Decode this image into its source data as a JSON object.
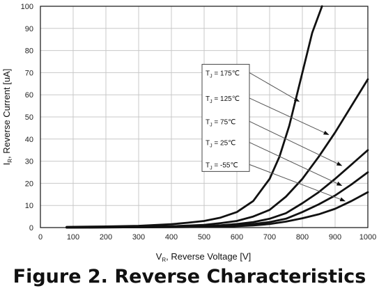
{
  "caption": "Figure 2. Reverse Characteristics",
  "chart_data": {
    "type": "line",
    "title": "",
    "xlabel_prefix": "V",
    "xlabel_sub": "R",
    "xlabel_rest": ", Reverse Voltage [V]",
    "ylabel_prefix": "I",
    "ylabel_sub": "R",
    "ylabel_rest": ", Reverse Current [uA]",
    "xlim": [
      0,
      1000
    ],
    "ylim": [
      0,
      100
    ],
    "xticks": [
      "0",
      "100",
      "200",
      "300",
      "400",
      "500",
      "600",
      "700",
      "800",
      "900",
      "1000"
    ],
    "yticks": [
      "0",
      "10",
      "20",
      "30",
      "40",
      "50",
      "60",
      "70",
      "80",
      "90",
      "100"
    ],
    "grid": true,
    "legend_placement": "center-left callouts with arrows",
    "series": [
      {
        "name": "T = 175℃",
        "label_sub": "J",
        "label_prefix": "T",
        "label_rest": " = 175℃",
        "x": [
          80,
          200,
          300,
          400,
          450,
          500,
          550,
          600,
          650,
          700,
          730,
          760,
          800,
          830,
          860
        ],
        "y": [
          0.3,
          0.5,
          0.8,
          1.5,
          2.2,
          3,
          4.5,
          7,
          12,
          22,
          32,
          46,
          70,
          88,
          100
        ],
        "label_y": 70,
        "arrow_to": [
          790,
          57
        ]
      },
      {
        "name": "T = 125℃",
        "label_sub": "J",
        "label_prefix": "T",
        "label_rest": " = 125℃",
        "x": [
          80,
          300,
          400,
          500,
          550,
          600,
          650,
          700,
          750,
          800,
          850,
          900,
          950,
          1000
        ],
        "y": [
          0.1,
          0.3,
          0.6,
          1.2,
          2,
          3,
          5,
          8,
          14,
          22,
          32,
          43,
          55,
          67
        ],
        "label_y": 58.5,
        "arrow_to": [
          880,
          42
        ]
      },
      {
        "name": "T = 75℃",
        "label_sub": "J",
        "label_prefix": "T",
        "label_rest": " = 75℃",
        "x": [
          80,
          400,
          500,
          550,
          600,
          650,
          700,
          750,
          800,
          850,
          900,
          950,
          1000
        ],
        "y": [
          0,
          0.3,
          0.6,
          1,
          1.6,
          2.5,
          4,
          6.5,
          11,
          16,
          22,
          28.5,
          35
        ],
        "label_y": 48,
        "arrow_to": [
          920,
          28
        ]
      },
      {
        "name": "T = 25℃",
        "label_sub": "J",
        "label_prefix": "T",
        "label_rest": " = 25℃",
        "x": [
          80,
          500,
          600,
          650,
          700,
          750,
          800,
          850,
          900,
          950,
          1000
        ],
        "y": [
          0,
          0.3,
          1,
          1.6,
          2.5,
          4,
          7,
          10.5,
          14.5,
          19.5,
          25
        ],
        "label_y": 38.5,
        "arrow_to": [
          920,
          19
        ]
      },
      {
        "name": "T = -55℃",
        "label_sub": "J",
        "label_prefix": "T",
        "label_rest": " = -55℃",
        "x": [
          80,
          550,
          650,
          700,
          750,
          800,
          850,
          900,
          950,
          1000
        ],
        "y": [
          0,
          0.3,
          1,
          1.6,
          2.7,
          4.2,
          6,
          8.5,
          12,
          16
        ],
        "label_y": 28.5,
        "arrow_to": [
          930,
          12
        ]
      }
    ],
    "colors": {
      "line": "#111111",
      "grid": "#c8c8c8",
      "arrow": "#555555"
    }
  }
}
